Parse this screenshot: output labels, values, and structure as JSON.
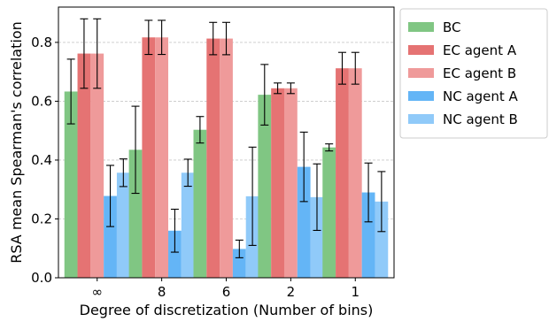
{
  "chart_data": {
    "type": "bar",
    "title": "",
    "xlabel": "Degree of discretization (Number of bins)",
    "ylabel": "RSA mean Spearman's correlation",
    "categories": [
      "∞",
      "8",
      "6",
      "2",
      "1"
    ],
    "ylim": [
      0,
      0.92
    ],
    "yticks": [
      0.0,
      0.2,
      0.4,
      0.6,
      0.8
    ],
    "ytick_labels": [
      "0.0",
      "0.2",
      "0.4",
      "0.6",
      "0.8"
    ],
    "grid": "horizontal dashed",
    "legend_position": "outside-right",
    "series": [
      {
        "name": "BC",
        "color": "#80c683",
        "values": [
          0.633,
          0.435,
          0.503,
          0.622,
          0.443
        ],
        "errors": [
          0.11,
          0.148,
          0.045,
          0.103,
          0.012
        ]
      },
      {
        "name": "EC agent A",
        "color": "#e57373",
        "values": [
          0.762,
          0.817,
          0.813,
          0.644,
          0.712
        ],
        "errors": [
          0.118,
          0.058,
          0.055,
          0.018,
          0.054
        ]
      },
      {
        "name": "EC agent B",
        "color": "#ef9a9a",
        "values": [
          0.762,
          0.817,
          0.813,
          0.644,
          0.712
        ],
        "errors": [
          0.118,
          0.058,
          0.055,
          0.018,
          0.054
        ]
      },
      {
        "name": "NC agent A",
        "color": "#64b5f6",
        "values": [
          0.278,
          0.16,
          0.098,
          0.377,
          0.29
        ],
        "errors": [
          0.104,
          0.073,
          0.03,
          0.118,
          0.1
        ]
      },
      {
        "name": "NC agent B",
        "color": "#90caf9",
        "values": [
          0.357,
          0.357,
          0.277,
          0.274,
          0.259
        ],
        "errors": [
          0.047,
          0.046,
          0.167,
          0.113,
          0.102
        ]
      }
    ]
  }
}
